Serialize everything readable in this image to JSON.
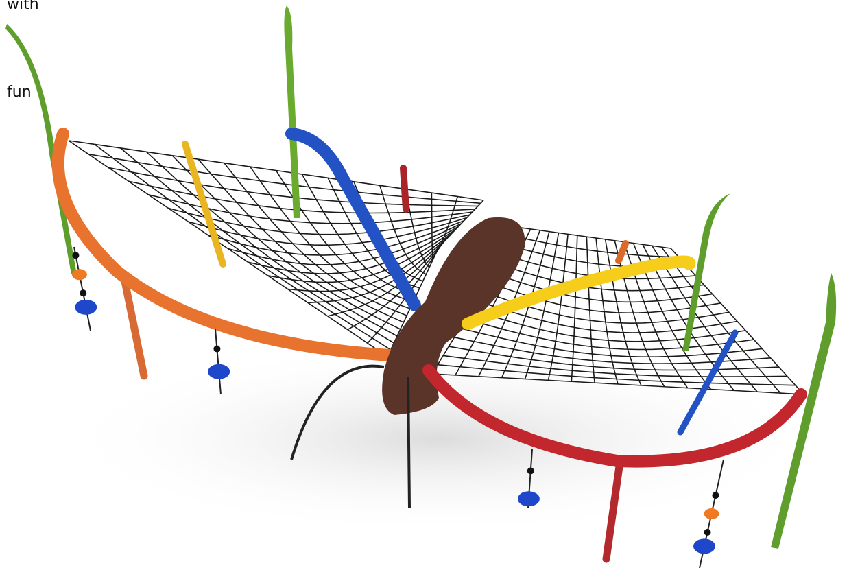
{
  "texts": {
    "line1": "with",
    "line2": "fun"
  }
}
